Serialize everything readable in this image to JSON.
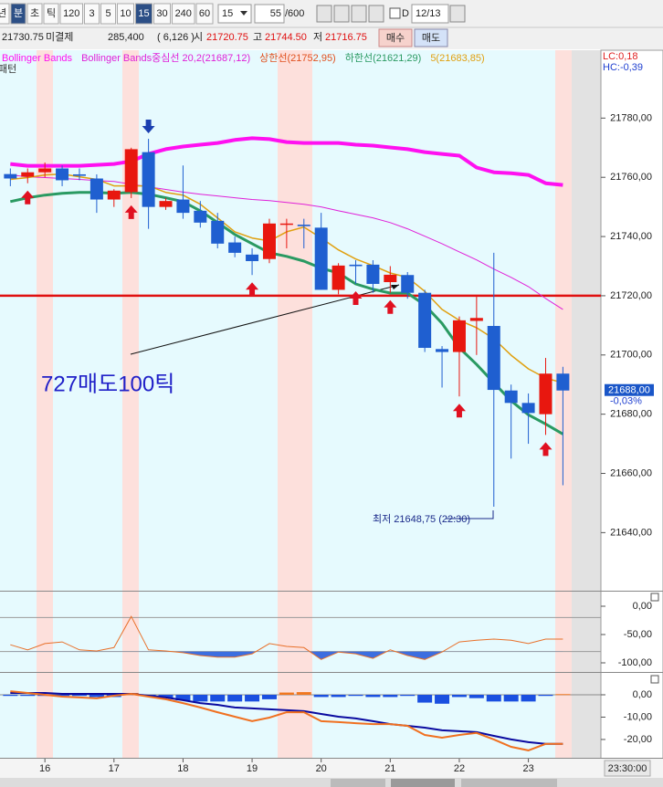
{
  "toolbar": {
    "periods": [
      "년",
      "분",
      "초",
      "틱",
      "120",
      "3",
      "5",
      "10",
      "15",
      "30",
      "240",
      "60"
    ],
    "active": [
      1,
      8
    ],
    "interval": "15",
    "count": "55",
    "total": "/600",
    "checkbox": "D",
    "date": "12/13"
  },
  "quote": {
    "last": "21730.75",
    "oi_label": "미결제",
    "oi": "285,400",
    "oi_change": "( 6,126 )",
    "open_label": "시",
    "open": "21720.75",
    "high_label": "고",
    "high": "21744.50",
    "low_label": "저",
    "low": "21716.75",
    "buy": "매수",
    "sell": "매도"
  },
  "chart_data": [
    {
      "type": "candlestick",
      "pattern_label": "패턴",
      "lc_label": "LC:0,18",
      "hc_label": "HC:-0,39",
      "open": [
        21761.1,
        21760.2,
        21761.7,
        21763,
        21761,
        21759.6,
        21752.5,
        21755,
        21768.5,
        21750,
        21752.5,
        21748.7,
        21745.3,
        21738,
        21733.9,
        21732.4,
        21744,
        21744,
        21743,
        21722,
        21730.5,
        21730.5,
        21724.6,
        21727,
        21721,
        21702,
        21701,
        21711.5,
        21709.8,
        21688,
        21683.8,
        21680,
        21693.7
      ],
      "high": [
        21763,
        21763,
        21765,
        21764,
        21763,
        21761,
        21756,
        21770,
        21773,
        21753,
        21764,
        21752,
        21748,
        21740,
        21736,
        21746,
        21746,
        21746,
        21748,
        21731,
        21732,
        21732,
        21730,
        21728,
        21722,
        21703,
        21713,
        21720,
        21734.5,
        21690,
        21687,
        21699,
        21696
      ],
      "low": [
        21757,
        21758,
        21760,
        21757,
        21759,
        21748,
        21750,
        21753,
        21742.6,
        21749,
        21746,
        21743,
        21736,
        21733,
        21727,
        21731,
        21736,
        21736,
        21722,
        21720.5,
        21724,
        21721,
        21721,
        21719,
        21701,
        21689,
        21686,
        21700,
        21648.75,
        21665,
        21670,
        21673,
        21656
      ],
      "close": [
        21759.6,
        21761.7,
        21763,
        21759,
        21760.5,
        21752.5,
        21755.5,
        21769.5,
        21750,
        21752,
        21748,
        21744.7,
        21737.6,
        21734.5,
        21731.7,
        21744.4,
        21744.4,
        21743.5,
        21722,
        21730.2,
        21730,
        21724,
        21727.1,
        21721,
        21702.4,
        21701,
        21711.7,
        21712.5,
        21688.2,
        21683.8,
        21680.4,
        21693.7,
        21688
      ],
      "up_color": "#e8170f",
      "down_color": "#1f5fd0",
      "series": [
        {
          "name": "Bollinger Bands",
          "color": "#ff10f0",
          "width": 4,
          "values": [
            21764.5,
            21763.9,
            21763.9,
            21763.9,
            21763.9,
            21764.2,
            21764.5,
            21765.4,
            21767.9,
            21769.5,
            21770.4,
            21771.0,
            21771.6,
            21772.6,
            21773.2,
            21772.9,
            21771.9,
            21771.6,
            21771.6,
            21771.6,
            21771.0,
            21770.7,
            21770.1,
            21769.5,
            21768.5,
            21767.9,
            21767.3,
            21763.3,
            21761.7,
            21761.4,
            21760.8,
            21758.0,
            21757.4
          ]
        },
        {
          "name": "Bollinger Bands중심선 20,2(21687,12)",
          "color": "#e020d8",
          "width": 1,
          "values": [
            21760.8,
            21760.2,
            21759.9,
            21759.6,
            21759.3,
            21758.9,
            21758.6,
            21757.7,
            21756.8,
            21755.9,
            21755.0,
            21754.3,
            21753.7,
            21753.1,
            21752.5,
            21752.1,
            21751.5,
            21750.9,
            21750.0,
            21748.7,
            21747.5,
            21746.3,
            21744.7,
            21742.6,
            21740.1,
            21737.6,
            21734.8,
            21732.1,
            21729.0,
            21726.2,
            21723.1,
            21719.1,
            21715.4
          ]
        },
        {
          "name": "상한선(21752,95)",
          "color": "#e0501e"
        },
        {
          "name": "하한선(21621,29)",
          "color": "#2a9a62",
          "width": 3,
          "values": [
            21751.8,
            21753.1,
            21754.0,
            21754.6,
            21754.9,
            21754.9,
            21754.6,
            21754.9,
            21754.3,
            21753.1,
            21751.8,
            21748.7,
            21744.7,
            21740.7,
            21737.6,
            21734.5,
            21733.3,
            21731.7,
            21729.3,
            21727.7,
            21724.0,
            21722.2,
            21720.9,
            21720.9,
            21716.9,
            21710.7,
            21702.4,
            21696.8,
            21690.6,
            21684.5,
            21679.8,
            21676.7,
            21673.3
          ]
        },
        {
          "name": "5(21683,85)",
          "color": "#e0a010",
          "width": 1.5,
          "values": [
            21759.3,
            21759.9,
            21760.8,
            21761.1,
            21760.2,
            21759.3,
            21757.1,
            21757.1,
            21757.1,
            21754.9,
            21754.0,
            21750.9,
            21746.3,
            21741.6,
            21739.5,
            21738.5,
            21741.6,
            21743.2,
            21739.5,
            21735.5,
            21732.4,
            21730.2,
            21727.7,
            21726.2,
            21721.5,
            21715.4,
            21711.7,
            21709.2,
            21705.5,
            21699.9,
            21695.3,
            21692.2,
            21690.6
          ]
        }
      ],
      "ylim": [
        21621,
        21802
      ],
      "yticks": [
        {
          "value": 21640,
          "label": "21640,00"
        },
        {
          "value": 21660,
          "label": "21660,00"
        },
        {
          "value": 21680,
          "label": "21680,00"
        },
        {
          "value": 21700,
          "label": "21700,00"
        },
        {
          "value": 21720,
          "label": "21720,00"
        },
        {
          "value": 21740,
          "label": "21740,00"
        },
        {
          "value": 21760,
          "label": "21760,00"
        },
        {
          "value": 21780,
          "label": "21780,00"
        }
      ],
      "xlim": [
        -0.6,
        34.2
      ],
      "xticks": [
        {
          "value": 2,
          "label": "16"
        },
        {
          "value": 6,
          "label": "17"
        },
        {
          "value": 10,
          "label": "18"
        },
        {
          "value": 14,
          "label": "19"
        },
        {
          "value": 18,
          "label": "20"
        },
        {
          "value": 22,
          "label": "21"
        },
        {
          "value": 26,
          "label": "22"
        },
        {
          "value": 30,
          "label": "23"
        }
      ],
      "x_cursor_label": "23:30:00",
      "hline": 21720,
      "hline_color": "#e01010",
      "buy_signals": [
        1,
        7,
        14,
        20,
        22,
        26,
        31
      ],
      "sell_signals": [
        8
      ],
      "last_price": 21688,
      "last_price_label": "21688,00",
      "change_label": "-0,03%",
      "annotations": [
        {
          "text": "727매도100틱"
        },
        {
          "text": "최저 21648,75 (22:30)"
        }
      ]
    },
    {
      "type": "line",
      "series": [
        {
          "color": "#e8702a",
          "values": [
            -68,
            -77,
            -66,
            -63,
            -77,
            -79,
            -73,
            -18,
            -77,
            -79,
            -82,
            -87,
            -90,
            -90,
            -84,
            -66,
            -71,
            -73,
            -94,
            -81,
            -84,
            -92,
            -77,
            -87,
            -94,
            -81,
            -63,
            -60,
            -58,
            -60,
            -66,
            -58,
            -58
          ]
        }
      ],
      "levels": [
        -20,
        -80
      ],
      "fill_color": "#3c6ee0",
      "ylim": [
        -114.5,
        22.6
      ],
      "yticks": [
        {
          "value": 0,
          "label": "0,00"
        },
        {
          "value": -50,
          "label": "-50,00"
        },
        {
          "value": -100,
          "label": "-100,00"
        }
      ]
    },
    {
      "type": "macd",
      "series": [
        {
          "color": "#0a0aa0",
          "values": [
            0.8,
            0.8,
            0.8,
            0.4,
            0.4,
            0.4,
            0.4,
            0.4,
            -0.4,
            -1.2,
            -2.4,
            -3.7,
            -4.5,
            -5.7,
            -6.1,
            -6.5,
            -6.9,
            -7.3,
            -8.6,
            -9.8,
            -10.6,
            -11.8,
            -13.1,
            -13.9,
            -14.7,
            -15.9,
            -16.3,
            -16.7,
            -18.4,
            -20,
            -21.2,
            -22,
            -22
          ]
        },
        {
          "color": "#f07020",
          "values": [
            1.6,
            0.8,
            0,
            -0.8,
            -1.2,
            -1.6,
            -0.4,
            0.4,
            -0.8,
            -2,
            -3.7,
            -5.7,
            -7.8,
            -9.8,
            -11.8,
            -10.2,
            -7.8,
            -7.8,
            -11.8,
            -12.2,
            -12.7,
            -13.1,
            -13.1,
            -13.9,
            -18,
            -19.2,
            -18,
            -17.1,
            -20,
            -23.3,
            -24.9,
            -22,
            -22
          ]
        }
      ],
      "histogram": [
        -0.5,
        -0.5,
        -0.5,
        -0.5,
        -0.5,
        -1,
        -1,
        0.8,
        -0.5,
        -1.5,
        -2.5,
        -3,
        -3,
        -3,
        -3,
        -2,
        1,
        1.2,
        -1,
        -1,
        -0.5,
        -1,
        -1,
        -0.5,
        -3.5,
        -4,
        -1,
        -1.5,
        -3,
        -3,
        -3,
        -0.5,
        0.3
      ],
      "pos_color": "#f07820",
      "neg_color": "#1a4fe0",
      "ylim": [
        -28.2,
        9.4
      ],
      "yticks": [
        {
          "value": 0,
          "label": "0,00"
        },
        {
          "value": -10,
          "label": "-10,00"
        },
        {
          "value": -20,
          "label": "-20,00"
        }
      ]
    }
  ]
}
